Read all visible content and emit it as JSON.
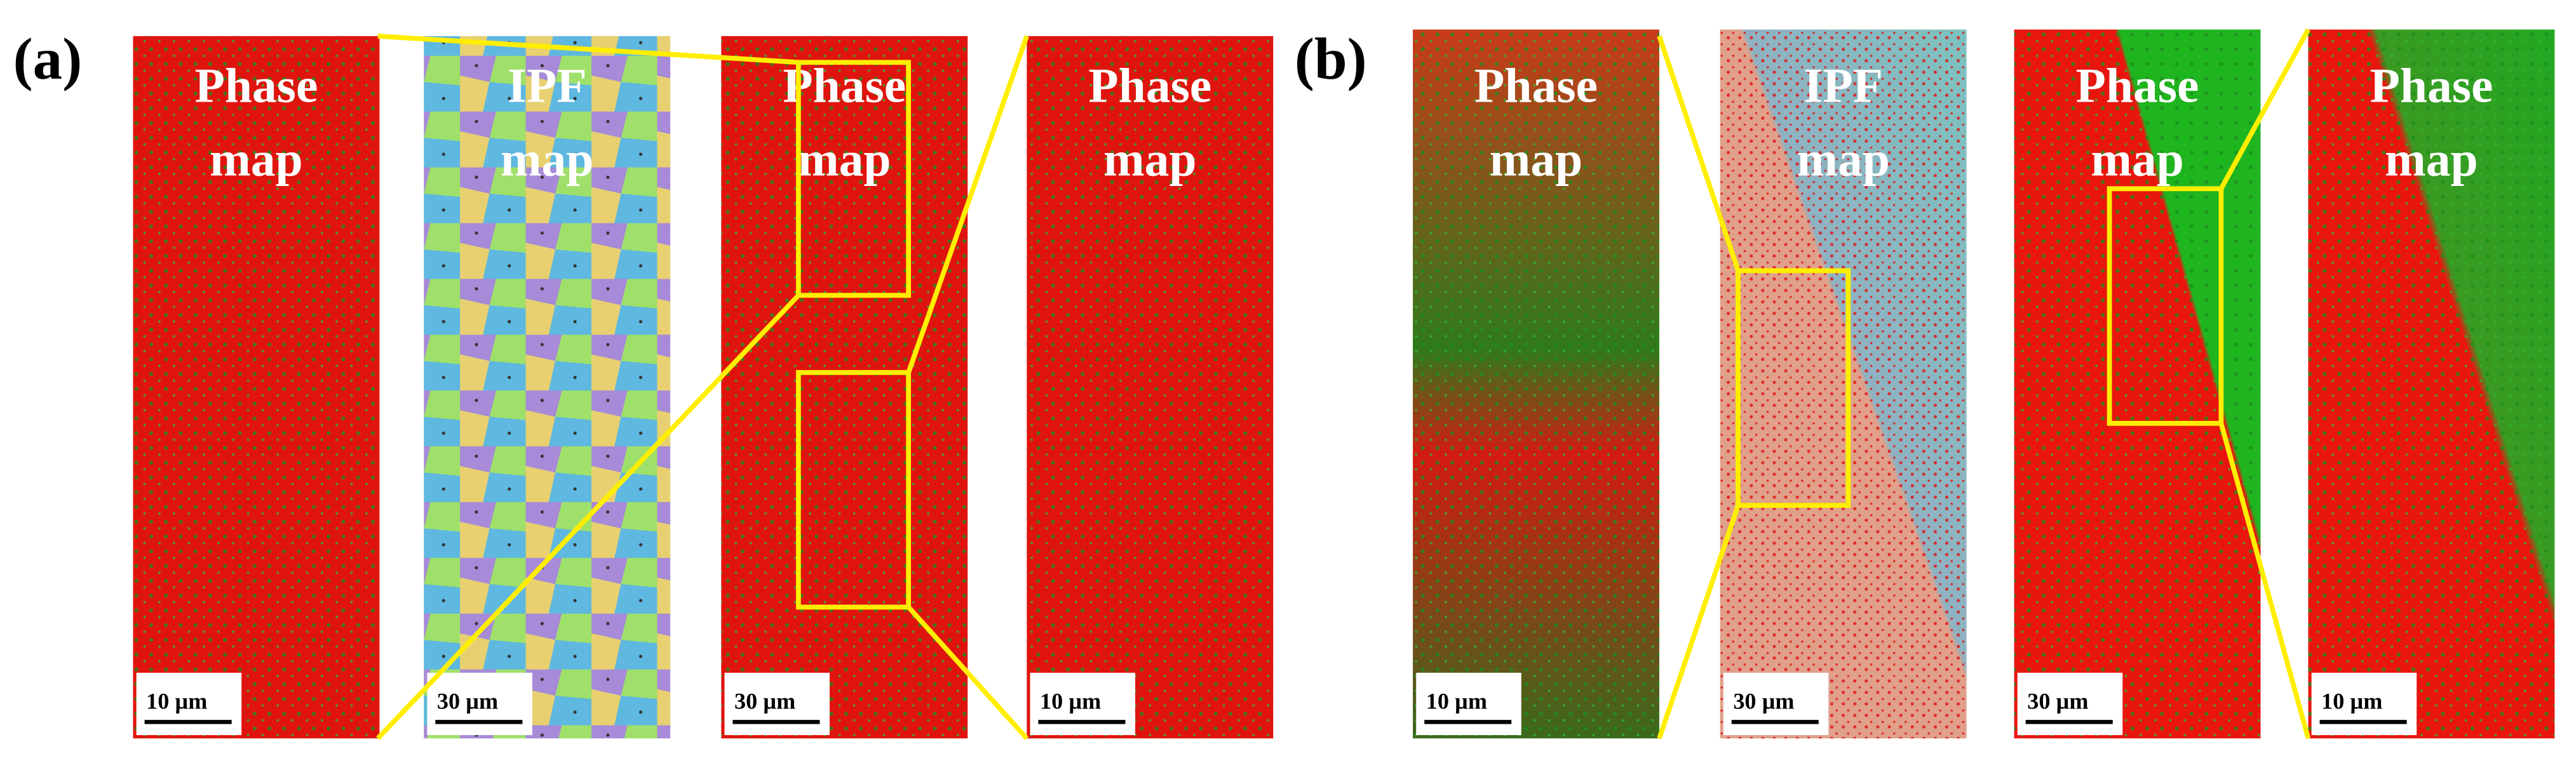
{
  "figure": {
    "panels": [
      {
        "label": "(a)",
        "maps": [
          {
            "title": [
              "Phase",
              "map"
            ],
            "scale_bar": "10 µm"
          },
          {
            "title": [
              "IPF",
              "map"
            ],
            "scale_bar": "30 µm"
          },
          {
            "title": [
              "Phase",
              "map"
            ],
            "scale_bar": "30 µm"
          },
          {
            "title": [
              "Phase",
              "map"
            ],
            "scale_bar": "10 µm"
          }
        ]
      },
      {
        "label": "(b)",
        "maps": [
          {
            "title": [
              "Phase",
              "map"
            ],
            "scale_bar": "10 µm"
          },
          {
            "title": [
              "IPF",
              "map"
            ],
            "scale_bar": "30 µm"
          },
          {
            "title": [
              "Phase",
              "map"
            ],
            "scale_bar": "30 µm"
          },
          {
            "title": [
              "Phase",
              "map"
            ],
            "scale_bar": "10 µm"
          }
        ]
      }
    ]
  }
}
